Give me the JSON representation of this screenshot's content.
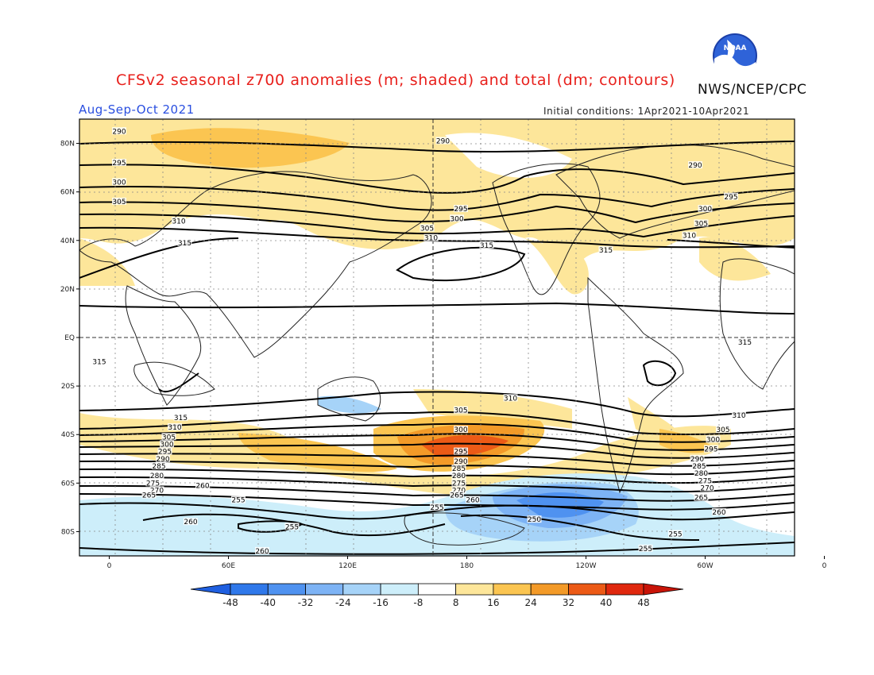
{
  "title": "CFSv2 seasonal z700 anomalies (m; shaded) and total (dm; contours)",
  "org": "NWS/NCEP/CPC",
  "logo_text": "NOAA",
  "season": "Aug-Sep-Oct 2021",
  "initial_conditions": "Initial conditions: 1Apr2021-10Apr2021",
  "map": {
    "lon_range": [
      -15,
      345
    ],
    "lat_range": [
      -90,
      90
    ],
    "lat_ticks": [
      {
        "lat": 80,
        "label": "80N"
      },
      {
        "lat": 60,
        "label": "60N"
      },
      {
        "lat": 40,
        "label": "40N"
      },
      {
        "lat": 20,
        "label": "20N"
      },
      {
        "lat": 0,
        "label": "EQ"
      },
      {
        "lat": -20,
        "label": "20S"
      },
      {
        "lat": -40,
        "label": "40S"
      },
      {
        "lat": -60,
        "label": "60S"
      },
      {
        "lat": -80,
        "label": "80S"
      }
    ],
    "lon_ticks": [
      {
        "lon": 0,
        "label": "0"
      },
      {
        "lon": 60,
        "label": "60E"
      },
      {
        "lon": 120,
        "label": "120E"
      },
      {
        "lon": 180,
        "label": "180"
      },
      {
        "lon": 240,
        "label": "120W"
      },
      {
        "lon": 300,
        "label": "60W"
      },
      {
        "lon": 360,
        "label": "0"
      }
    ]
  },
  "colorbar": {
    "labels": [
      "-48",
      "-40",
      "-32",
      "-24",
      "-16",
      "-8",
      "8",
      "16",
      "24",
      "32",
      "40",
      "48"
    ],
    "colors": [
      "#1f5fe0",
      "#2f78ea",
      "#4f92f0",
      "#7db3f5",
      "#a6d3f8",
      "#cdeefa",
      "#ffffff",
      "#fde69a",
      "#fbc551",
      "#f39a28",
      "#ec5a16",
      "#e0280e",
      "#c81408"
    ]
  },
  "contour_labels": [
    {
      "lon": 5,
      "lat": 85,
      "text": "290"
    },
    {
      "lon": 168,
      "lat": 81,
      "text": "290"
    },
    {
      "lon": 295,
      "lat": 71,
      "text": "290"
    },
    {
      "lon": 5,
      "lat": 72,
      "text": "295"
    },
    {
      "lon": 177,
      "lat": 53,
      "text": "295"
    },
    {
      "lon": 313,
      "lat": 58,
      "text": "295"
    },
    {
      "lon": 5,
      "lat": 64,
      "text": "300"
    },
    {
      "lon": 175,
      "lat": 49,
      "text": "300"
    },
    {
      "lon": 300,
      "lat": 53,
      "text": "300"
    },
    {
      "lon": 5,
      "lat": 56,
      "text": "305"
    },
    {
      "lon": 160,
      "lat": 45,
      "text": "305"
    },
    {
      "lon": 298,
      "lat": 47,
      "text": "305"
    },
    {
      "lon": 35,
      "lat": 48,
      "text": "310"
    },
    {
      "lon": 162,
      "lat": 41,
      "text": "310"
    },
    {
      "lon": 292,
      "lat": 42,
      "text": "310"
    },
    {
      "lon": 38,
      "lat": 39,
      "text": "315"
    },
    {
      "lon": 190,
      "lat": 38,
      "text": "315"
    },
    {
      "lon": 250,
      "lat": 36,
      "text": "315"
    },
    {
      "lon": 320,
      "lat": -2,
      "text": "315"
    },
    {
      "lon": -5,
      "lat": -10,
      "text": "315"
    },
    {
      "lon": 36,
      "lat": -33,
      "text": "315"
    },
    {
      "lon": 202,
      "lat": -25,
      "text": "310"
    },
    {
      "lon": 317,
      "lat": -32,
      "text": "310"
    },
    {
      "lon": 33,
      "lat": -37,
      "text": "310"
    },
    {
      "lon": 177,
      "lat": -30,
      "text": "305"
    },
    {
      "lon": 309,
      "lat": -38,
      "text": "305"
    },
    {
      "lon": 30,
      "lat": -41,
      "text": "305"
    },
    {
      "lon": 177,
      "lat": -38,
      "text": "300"
    },
    {
      "lon": 304,
      "lat": -42,
      "text": "300"
    },
    {
      "lon": 29,
      "lat": -44,
      "text": "300"
    },
    {
      "lon": 177,
      "lat": -47,
      "text": "295"
    },
    {
      "lon": 303,
      "lat": -46,
      "text": "295"
    },
    {
      "lon": 28,
      "lat": -47,
      "text": "295"
    },
    {
      "lon": 177,
      "lat": -51,
      "text": "290"
    },
    {
      "lon": 296,
      "lat": -50,
      "text": "290"
    },
    {
      "lon": 27,
      "lat": -50,
      "text": "290"
    },
    {
      "lon": 176,
      "lat": -54,
      "text": "285"
    },
    {
      "lon": 297,
      "lat": -53,
      "text": "285"
    },
    {
      "lon": 25,
      "lat": -53,
      "text": "285"
    },
    {
      "lon": 176,
      "lat": -57,
      "text": "280"
    },
    {
      "lon": 298,
      "lat": -56,
      "text": "280"
    },
    {
      "lon": 24,
      "lat": -57,
      "text": "280"
    },
    {
      "lon": 176,
      "lat": -60,
      "text": "275"
    },
    {
      "lon": 300,
      "lat": -59,
      "text": "275"
    },
    {
      "lon": 22,
      "lat": -60,
      "text": "275"
    },
    {
      "lon": 176,
      "lat": -63,
      "text": "270"
    },
    {
      "lon": 301,
      "lat": -62,
      "text": "270"
    },
    {
      "lon": 24,
      "lat": -63,
      "text": "270"
    },
    {
      "lon": 175,
      "lat": -65,
      "text": "265"
    },
    {
      "lon": 298,
      "lat": -66,
      "text": "265"
    },
    {
      "lon": 20,
      "lat": -65,
      "text": "265"
    },
    {
      "lon": 183,
      "lat": -67,
      "text": "260"
    },
    {
      "lon": 307,
      "lat": -72,
      "text": "260"
    },
    {
      "lon": 47,
      "lat": -61,
      "text": "260"
    },
    {
      "lon": 41,
      "lat": -76,
      "text": "260"
    },
    {
      "lon": 77,
      "lat": -88,
      "text": "260"
    },
    {
      "lon": 65,
      "lat": -67,
      "text": "255"
    },
    {
      "lon": 92,
      "lat": -78,
      "text": "255"
    },
    {
      "lon": 165,
      "lat": -70,
      "text": "255"
    },
    {
      "lon": 285,
      "lat": -81,
      "text": "255"
    },
    {
      "lon": 270,
      "lat": -87,
      "text": "255"
    },
    {
      "lon": 214,
      "lat": -75,
      "text": "250"
    }
  ]
}
